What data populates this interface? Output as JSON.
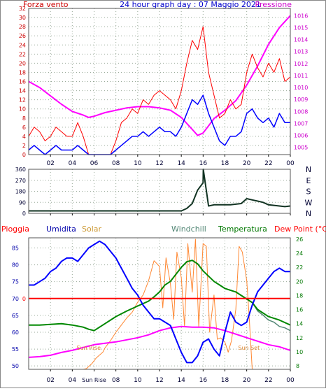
{
  "chart_data": [
    {
      "type": "line",
      "title": "24 hour graph day : 07 Maggio 2021",
      "left_label": "Forza vento",
      "right_label": "Pressione",
      "x_ticks": [
        "02",
        "04",
        "06",
        "08",
        "10",
        "12",
        "14",
        "16",
        "18",
        "20",
        "22",
        "00"
      ],
      "y_left_ticks": [
        "0",
        "2",
        "4",
        "6",
        "8",
        "10",
        "12",
        "14",
        "16",
        "18",
        "20",
        "22",
        "24",
        "26",
        "28",
        "30",
        "32"
      ],
      "y_left_range": [
        0,
        32
      ],
      "y_right_ticks": [
        "1005",
        "1006",
        "1007",
        "1008",
        "1009",
        "1010",
        "1011",
        "1012",
        "1013",
        "1014",
        "1015",
        "1016"
      ],
      "y_right_range": [
        1004.4,
        1016.6
      ],
      "grid": true,
      "colors": {
        "gust": "#ff0000",
        "wind": "#0000ff",
        "pressure": "#ff00ff",
        "left_text": "#cc0000",
        "right_text": "#cc00cc",
        "title": "#0000cc"
      },
      "series": [
        {
          "key": "pressure",
          "x": [
            0,
            1,
            2,
            3,
            4,
            5,
            5.5,
            6,
            7,
            8,
            9,
            10,
            11,
            12,
            13,
            14,
            15,
            15.5,
            16,
            17,
            18,
            19,
            20,
            21,
            22,
            23,
            24
          ],
          "y": [
            1010.5,
            1010,
            1009.3,
            1008.6,
            1008,
            1007.7,
            1007.5,
            1007.6,
            1007.9,
            1008.1,
            1008.3,
            1008.4,
            1008.4,
            1008.3,
            1008.1,
            1007.5,
            1006.5,
            1006,
            1006.2,
            1007.4,
            1008.1,
            1008.9,
            1010.2,
            1011.8,
            1013.6,
            1015,
            1016
          ]
        },
        {
          "key": "gust",
          "x": [
            0,
            0.5,
            1,
            1.5,
            2,
            2.5,
            3,
            3.5,
            4,
            4.5,
            5,
            5.5,
            6,
            6.5,
            7,
            7.5,
            8,
            8.5,
            9,
            9.5,
            10,
            10.5,
            11,
            11.5,
            12,
            12.5,
            13,
            13.5,
            14,
            14.5,
            15,
            15.5,
            16,
            16.5,
            17,
            17.5,
            18,
            18.5,
            19,
            19.5,
            20,
            20.5,
            21,
            21.5,
            22,
            22.5,
            23,
            23.5,
            24
          ],
          "y": [
            4,
            6,
            5,
            3,
            4,
            6,
            5,
            4,
            4,
            7,
            4,
            0,
            0,
            0,
            0,
            0,
            3,
            7,
            8,
            10,
            9,
            12,
            11,
            13,
            14,
            13,
            12,
            10,
            14,
            20,
            25,
            23,
            28,
            18,
            13,
            8,
            9,
            12,
            10,
            11,
            18,
            22,
            19,
            17,
            20,
            18,
            21,
            16,
            17
          ]
        },
        {
          "key": "wind",
          "x": [
            0,
            0.5,
            1,
            1.5,
            2,
            2.5,
            3,
            3.5,
            4,
            4.5,
            5,
            5.5,
            6,
            6.5,
            7,
            7.5,
            8,
            8.5,
            9,
            9.5,
            10,
            10.5,
            11,
            11.5,
            12,
            12.5,
            13,
            13.5,
            14,
            14.5,
            15,
            15.5,
            16,
            16.5,
            17,
            17.5,
            18,
            18.5,
            19,
            19.5,
            20,
            20.5,
            21,
            21.5,
            22,
            22.5,
            23,
            23.5,
            24
          ],
          "y": [
            1,
            2,
            1,
            0,
            1,
            2,
            1,
            1,
            1,
            2,
            1,
            0,
            0,
            0,
            0,
            0,
            1,
            2,
            3,
            4,
            4,
            5,
            4,
            5,
            6,
            5,
            5,
            4,
            6,
            9,
            12,
            11,
            13,
            9,
            6,
            3,
            2,
            4,
            4,
            5,
            9,
            10,
            8,
            7,
            8,
            6,
            9,
            7,
            7
          ]
        }
      ]
    },
    {
      "type": "line",
      "title": "",
      "x_ticks": [
        "02",
        "04",
        "06",
        "08",
        "10",
        "12",
        "14",
        "16",
        "18",
        "20",
        "22",
        "00"
      ],
      "y_left_ticks": [
        "0",
        "90",
        "180",
        "270",
        "360"
      ],
      "y_left_range": [
        0,
        360
      ],
      "y_right_ticks": [
        "N",
        "W",
        "S",
        "E",
        "N"
      ],
      "grid": true,
      "colors": {
        "direction": "#113322"
      },
      "series": [
        {
          "key": "direction",
          "x": [
            0,
            1,
            2,
            3,
            4,
            5,
            6,
            7,
            8,
            9,
            10,
            11,
            12,
            13,
            14,
            14.5,
            15,
            15.5,
            16,
            16.02,
            16.5,
            17,
            18,
            18.5,
            19,
            19.5,
            20,
            20.5,
            21,
            21.5,
            22,
            22.5,
            23,
            23.5,
            24
          ],
          "y": [
            20,
            20,
            20,
            20,
            20,
            20,
            20,
            20,
            20,
            20,
            20,
            20,
            20,
            20,
            20,
            40,
            80,
            190,
            250,
            360,
            60,
            70,
            70,
            70,
            75,
            80,
            120,
            110,
            100,
            90,
            70,
            65,
            60,
            55,
            60
          ]
        }
      ]
    },
    {
      "type": "line",
      "title": "",
      "legend": [
        "Pioggia",
        "Umidita",
        "Solar",
        "Windchill",
        "Temperatura",
        "Dew Point (°C)"
      ],
      "x_ticks": [
        "02",
        "04",
        "Sun Rise",
        "08",
        "10",
        "12",
        "14",
        "16",
        "18",
        "20",
        "22",
        "00"
      ],
      "y_left_ticks": [
        "50",
        "55",
        "60",
        "65",
        "70",
        "75",
        "80",
        "85"
      ],
      "y_left_range": [
        49,
        88
      ],
      "y_right_ticks": [
        "8",
        "10",
        "12",
        "14",
        "16",
        "18",
        "20",
        "22",
        "24",
        "26"
      ],
      "y_right_range": [
        7.5,
        26.2
      ],
      "rain_label": "0",
      "annotations": [
        "Sun Rise",
        "Sun Set"
      ],
      "grid": true,
      "colors": {
        "rain": "#ff0000",
        "humidity": "#0000ff",
        "solar": "#ff8833",
        "windchill": "#558877",
        "temperature": "#008800",
        "dew_point": "#ff00ff",
        "pioggia_text": "#ff0000",
        "umidita_text": "#0000aa",
        "solar_text": "#cc9933",
        "windchill_text": "#558877",
        "temperatura_text": "#007700",
        "dewpoint_text": "#ff0000",
        "annotation": "#dd8833"
      },
      "series": [
        {
          "key": "humidity",
          "x": [
            0,
            0.5,
            1,
            1.5,
            2,
            2.5,
            3,
            3.5,
            4,
            4.5,
            5,
            5.5,
            6,
            6.5,
            7,
            7.5,
            8,
            8.5,
            9,
            9.5,
            10,
            10.5,
            11,
            11.5,
            12,
            12.5,
            13,
            13.5,
            14,
            14.5,
            15,
            15.5,
            16,
            16.5,
            17,
            17.5,
            18,
            18.5,
            19,
            19.5,
            20,
            20.5,
            21,
            21.5,
            22,
            22.5,
            23,
            23.5,
            24
          ],
          "y": [
            74,
            74,
            75,
            76,
            78,
            79,
            81,
            82,
            82,
            81,
            83,
            85,
            86,
            87,
            86,
            84,
            82,
            79,
            76,
            73,
            71,
            68,
            66,
            64,
            64,
            63,
            62,
            58,
            54,
            51,
            51,
            53,
            57,
            58,
            55,
            53,
            60,
            66,
            63,
            62,
            63,
            68,
            72,
            74,
            76,
            78,
            79,
            78,
            78
          ]
        },
        {
          "key": "temperature",
          "x": [
            0,
            1,
            2,
            3,
            4,
            5,
            5.5,
            6,
            6.5,
            7,
            8,
            9,
            10,
            11,
            11.5,
            12,
            12.5,
            13,
            14,
            14.5,
            15,
            15.5,
            16,
            17,
            18,
            19,
            20,
            20.5,
            21,
            22,
            23,
            24
          ],
          "y": [
            13.8,
            13.8,
            13.9,
            14,
            13.8,
            13.5,
            13.2,
            13,
            13.5,
            14,
            15,
            15.8,
            16.5,
            17.2,
            17.8,
            18.5,
            19.5,
            20,
            22,
            22.8,
            23,
            22.5,
            21.5,
            20,
            19,
            18.5,
            17.5,
            17,
            16,
            15,
            14.5,
            13.8
          ]
        },
        {
          "key": "windchill",
          "x": [
            0,
            1,
            2,
            3,
            4,
            5,
            5.5,
            6,
            6.5,
            7,
            8,
            9,
            10,
            11,
            11.5,
            12,
            12.5,
            13,
            14,
            14.5,
            15,
            15.5,
            16,
            17,
            18,
            19,
            20,
            20.5,
            21,
            21.5,
            22,
            22.5,
            23,
            23.5,
            24
          ],
          "y": [
            13.8,
            13.8,
            13.9,
            14,
            13.8,
            13.5,
            13.2,
            13,
            13.5,
            14,
            15,
            15.8,
            16.5,
            17.2,
            17.8,
            18.5,
            19.5,
            20,
            22,
            22.8,
            23,
            22.5,
            21.5,
            20,
            19,
            18.5,
            17.5,
            17,
            15.8,
            15.2,
            14.5,
            14.2,
            13.6,
            13.4,
            13
          ]
        },
        {
          "key": "dew_point",
          "x": [
            0,
            1,
            2,
            3,
            4,
            5,
            6,
            7,
            8,
            9,
            10,
            11,
            12,
            13,
            14,
            15,
            16,
            17,
            18,
            19,
            20,
            21,
            22,
            23,
            24
          ],
          "y": [
            9.2,
            9.3,
            9.5,
            9.9,
            10.2,
            10.6,
            11,
            11.2,
            11.4,
            11.7,
            12,
            12.4,
            13,
            13.4,
            13.6,
            13.5,
            13.5,
            13.4,
            13,
            12.5,
            12,
            11.5,
            11,
            10.7,
            10.2
          ]
        },
        {
          "key": "solar",
          "x": [
            0,
            1,
            2,
            3,
            4,
            5,
            5.3,
            5.8,
            6.2,
            6.8,
            7,
            7.5,
            8,
            8.5,
            9,
            9.5,
            10,
            10.5,
            11,
            11.5,
            12,
            12.3,
            12.6,
            13,
            13.3,
            13.6,
            14,
            14.3,
            14.6,
            15,
            15.3,
            15.6,
            16,
            16.3,
            16.6,
            17,
            17.3,
            17.6,
            18,
            18.3,
            18.6,
            19,
            19.3,
            19.6,
            20,
            20.2,
            20.5,
            21,
            22,
            23,
            24
          ],
          "y": [
            0,
            0,
            0,
            0,
            0,
            0,
            5,
            40,
            80,
            120,
            150,
            200,
            260,
            310,
            360,
            400,
            470,
            520,
            620,
            760,
            720,
            430,
            780,
            600,
            350,
            820,
            640,
            300,
            880,
            540,
            910,
            300,
            880,
            860,
            260,
            520,
            210,
            220,
            190,
            120,
            200,
            420,
            860,
            820,
            620,
            400,
            0,
            0,
            0,
            0,
            0
          ]
        }
      ]
    }
  ]
}
